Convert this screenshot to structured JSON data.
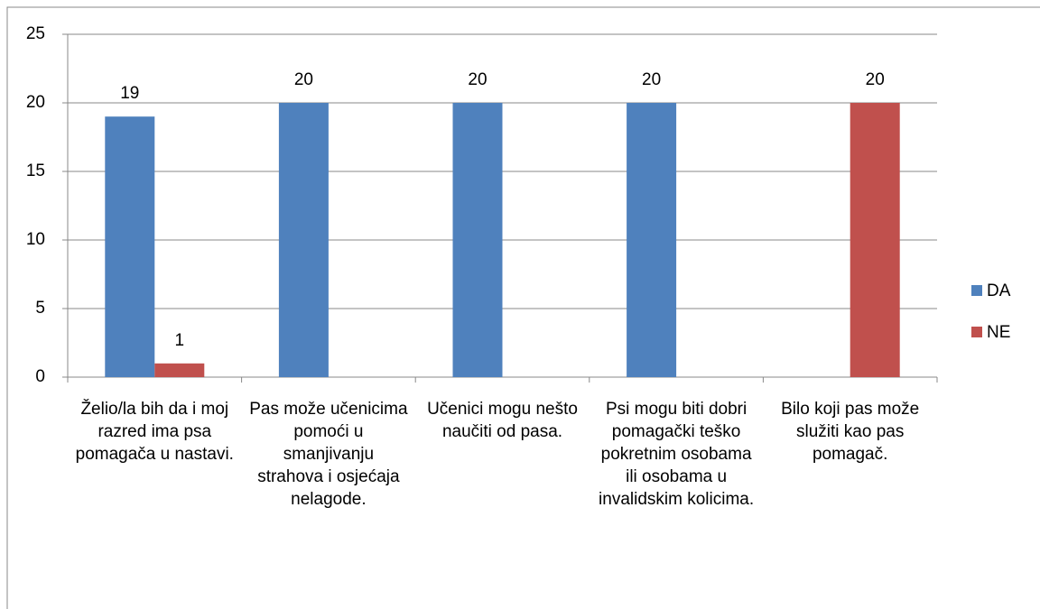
{
  "chart_data": {
    "type": "bar",
    "categories": [
      "Želio/la bih da i moj razred ima psa pomagača u nastavi.",
      "Pas može učenicima pomoći u smanjivanju strahova i osjećaja nelagode.",
      "Učenici mogu nešto naučiti od pasa.",
      "Psi mogu biti dobri pomagački teško pokretnim osobama ili osobama u invalidskim kolicima.",
      "Bilo koji pas može služiti kao pas pomagač."
    ],
    "series": [
      {
        "name": "DA",
        "color": "#4f81bd",
        "values": [
          19,
          20,
          20,
          20,
          null
        ]
      },
      {
        "name": "NE",
        "color": "#c0504d",
        "values": [
          1,
          null,
          null,
          null,
          20
        ]
      }
    ],
    "ylim": [
      0,
      25
    ],
    "yticks": [
      0,
      5,
      10,
      15,
      20,
      25
    ],
    "grid": true,
    "legend": "right"
  }
}
